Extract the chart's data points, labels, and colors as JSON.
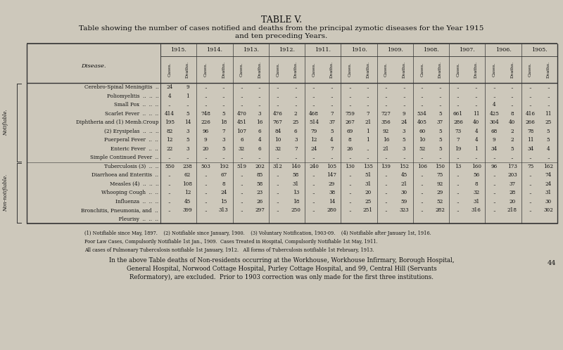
{
  "title": "TABLE V.",
  "subtitle1": "Table showing the number of cases notified and deaths from the principal zymotic diseases for the Year 1915",
  "subtitle2": "and ten preceding Years.",
  "background_color": "#cdc8bb",
  "years": [
    "1915.",
    "1914.",
    "1913.",
    "1912.",
    "1911.",
    "1910.",
    "1909.",
    "1908.",
    "1907.",
    "1906.",
    "1905."
  ],
  "notifiable_label": "Notifiable.",
  "non_notifiable_label": "Non-notifiable.",
  "disease_label": "Disease.",
  "diseases": [
    "Cerebro-Spinal Meningitis  ..",
    "Poliomyelitis  ..  ..  ..",
    "Small Pox  ..  ..  ..",
    "Scarlet Fever  ..  ..  ..",
    "Diphtheria and (1) Memb.Croup",
    "(2) Erysipelas  ..  ..  ..",
    "Puerperal Fever  ..  ..",
    "Enteric Fever  ..  ..",
    "Simple Continued Fever  ..",
    "Tuberculosis (3)  ..  ..",
    "Diarrhoea and Enteritis  ..",
    "Measles (4)  ..  ..  ..",
    "Whooping Cough  ..  ..",
    "Influenza  ..  ..  ..",
    "Bronchitis, Pneumonia, and  ..",
    "  Pleurisy  ..  ..  .."
  ],
  "n_notifiable": 9,
  "data": [
    [
      "24",
      "9",
      "..",
      "..",
      "..",
      "..",
      "..",
      "..",
      "..",
      "..",
      "..",
      "..",
      "..",
      "..",
      "..",
      "..",
      "..",
      "..",
      "..",
      "..",
      "..",
      ".."
    ],
    [
      "4",
      "1",
      "..",
      "..",
      "..",
      "..",
      "..",
      "..",
      "..",
      "..",
      "..",
      "..",
      "..",
      "..",
      "..",
      "..",
      "..",
      "..",
      "..",
      "..",
      "..",
      ".."
    ],
    [
      "..",
      "..",
      "..",
      "..",
      "..",
      "..",
      "..",
      "..",
      "..",
      "..",
      "..",
      "..",
      "..",
      "..",
      "..",
      "..",
      "..",
      "..",
      "4",
      "..",
      "..",
      ".."
    ],
    [
      "414",
      "5",
      "748",
      "5",
      "470",
      "3",
      "476",
      "2",
      "468",
      "7",
      "759",
      "7",
      "727",
      "9",
      "534",
      "5",
      "661",
      "11",
      "425",
      "8",
      "416",
      "11"
    ],
    [
      "195",
      "14",
      "226",
      "18",
      "451",
      "16",
      "767",
      "25",
      "514",
      "37",
      "267",
      "21",
      "356",
      "24",
      "405",
      "37",
      "286",
      "40",
      "304",
      "40",
      "266",
      "25"
    ],
    [
      "82",
      "3",
      "96",
      "7",
      "107",
      "6",
      "84",
      "6",
      "79",
      "5",
      "69",
      "1",
      "92",
      "3",
      "60",
      "5",
      "73",
      "4",
      "68",
      "2",
      "78",
      "5"
    ],
    [
      "12",
      "5",
      "9",
      "3",
      "6",
      "4",
      "10",
      "3",
      "12",
      "4",
      "8",
      "1",
      "16",
      "5",
      "10",
      "5",
      "7",
      "4",
      "9",
      "2",
      "11",
      "5"
    ],
    [
      "22",
      "3",
      "20",
      "5",
      "32",
      "6",
      "32",
      "7",
      "24",
      "7",
      "26",
      "..",
      "21",
      "3",
      "52",
      "5",
      "19",
      "1",
      "34",
      "5",
      "34",
      "4"
    ],
    [
      "..",
      "..",
      "..",
      "..",
      "..",
      "..",
      "..",
      "..",
      "..",
      "..",
      "..",
      "..",
      "..",
      "..",
      "..",
      "..",
      "..",
      "..",
      "..",
      "..",
      "..",
      ".."
    ],
    [
      "550",
      "238",
      "503",
      "192",
      "519",
      "202",
      "312",
      "140",
      "240",
      "105",
      "130",
      "135",
      "139",
      "152",
      "106",
      "150",
      "13",
      "160",
      "96",
      "173",
      "75",
      "162"
    ],
    [
      "..",
      "62",
      "..",
      "67",
      "..",
      "85",
      "..",
      "58",
      "..",
      "147",
      "..",
      "51",
      "..",
      "45",
      "..",
      "75",
      "..",
      "56",
      "..",
      "203",
      "..",
      "74"
    ],
    [
      "..",
      "108",
      "..",
      "8",
      "..",
      "58",
      "..",
      "31",
      "..",
      "29",
      "..",
      "31",
      "..",
      "21",
      "..",
      "92",
      "..",
      "8",
      "..",
      "37",
      "..",
      "24"
    ],
    [
      "..",
      "12",
      "..",
      "24",
      "..",
      "23",
      "..",
      "13",
      "..",
      "38",
      "..",
      "20",
      "..",
      "30",
      "..",
      "29",
      "..",
      "32",
      "..",
      "28",
      "..",
      "31"
    ],
    [
      "..",
      "45",
      "..",
      "15",
      "..",
      "26",
      "..",
      "18",
      "..",
      "14",
      "..",
      "25",
      "..",
      "59",
      "..",
      "52",
      "..",
      "31",
      "..",
      "20",
      "..",
      "30"
    ],
    [
      "..",
      "399",
      "..",
      "313",
      "..",
      "297",
      "..",
      "250",
      "..",
      "280",
      "..",
      "251",
      "..",
      "323",
      "..",
      "282",
      "..",
      "316",
      "..",
      "218",
      "..",
      "302"
    ],
    [
      "",
      "",
      "",
      "",
      "",
      "",
      "",
      "",
      "",
      "",
      "",
      "",
      "",
      "",
      "",
      "",
      "",
      "",
      "",
      "",
      "",
      ""
    ]
  ],
  "footnote1": "(1) Notifiable since May, 1897.    (2) Notifiable since January, 1900.    (3) Voluntary Notification, 1903-09.    (4) Notifiable after January 1st, 1916.",
  "footnote2": "Poor Law Cases, Compulsorily Notifiable 1st Jan., 1909.  Cases Treated in Hospital, Compulsorily Notifiable 1st May, 1911.",
  "footnote3": "All cases of Pulmonary Tuberculosis notifiable 1st January, 1912.   All forms of Tuberculosis notifiable 1st February, 1913.",
  "bottom_text1": "In the above Table deaths of Non-residents occurring at the Workhouse, Workhouse Infirmary, Borough Hospital,",
  "bottom_text2": "General Hospital, Norwood Cottage Hospital, Purley Cottage Hospital, and 99, Central Hill (Servants",
  "bottom_text3": "Reformatory), are excluded.  Prior to 1903 correction was only made for the first three institutions.",
  "page_number": "44"
}
